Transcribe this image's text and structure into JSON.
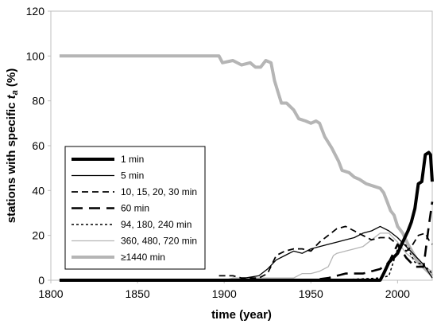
{
  "chart_data": {
    "type": "line",
    "xlabel": "time (year)",
    "ylabel": "stations with specific t_a (%)",
    "ylabel_parts": {
      "main": "stations with specific ",
      "var": "t",
      "sub": "a",
      "unit": " (%)"
    },
    "xlim": [
      1800,
      2020
    ],
    "ylim": [
      0,
      120
    ],
    "x_ticks": [
      "1800",
      "1850",
      "1900",
      "1950",
      "2000"
    ],
    "y_ticks": [
      "0",
      "20",
      "40",
      "60",
      "80",
      "100",
      "120"
    ],
    "grid": "none",
    "legend_position": "left-center",
    "series": [
      {
        "name": "1 min",
        "style": "thick-solid",
        "color": "#000000",
        "points": [
          [
            1805,
            0
          ],
          [
            1990,
            0
          ],
          [
            1992,
            3
          ],
          [
            1995,
            8
          ],
          [
            2000,
            12
          ],
          [
            2003,
            17
          ],
          [
            2006,
            22
          ],
          [
            2008,
            26
          ],
          [
            2010,
            32
          ],
          [
            2012,
            43
          ],
          [
            2014,
            44
          ],
          [
            2016,
            56
          ],
          [
            2018,
            57
          ],
          [
            2019,
            56
          ],
          [
            2020,
            44
          ]
        ]
      },
      {
        "name": "5 min",
        "style": "thin-solid",
        "color": "#000000",
        "points": [
          [
            1805,
            0
          ],
          [
            1910,
            0
          ],
          [
            1912,
            1
          ],
          [
            1920,
            2
          ],
          [
            1925,
            5
          ],
          [
            1930,
            9
          ],
          [
            1935,
            11
          ],
          [
            1940,
            13
          ],
          [
            1945,
            12
          ],
          [
            1950,
            14
          ],
          [
            1955,
            15
          ],
          [
            1960,
            16
          ],
          [
            1965,
            17
          ],
          [
            1970,
            18
          ],
          [
            1975,
            19
          ],
          [
            1980,
            21
          ],
          [
            1985,
            22
          ],
          [
            1990,
            24
          ],
          [
            1995,
            22
          ],
          [
            2000,
            19
          ],
          [
            2005,
            15
          ],
          [
            2010,
            11
          ],
          [
            2015,
            7
          ],
          [
            2020,
            1
          ]
        ]
      },
      {
        "name": "10, 15, 20, 30 min",
        "style": "dashed",
        "color": "#000000",
        "points": [
          [
            1897,
            2
          ],
          [
            1905,
            2
          ],
          [
            1910,
            1
          ],
          [
            1920,
            1
          ],
          [
            1925,
            3
          ],
          [
            1930,
            11
          ],
          [
            1935,
            13
          ],
          [
            1940,
            14
          ],
          [
            1945,
            14
          ],
          [
            1950,
            13
          ],
          [
            1955,
            17
          ],
          [
            1960,
            20
          ],
          [
            1965,
            23
          ],
          [
            1970,
            24
          ],
          [
            1975,
            22
          ],
          [
            1980,
            20
          ],
          [
            1985,
            18
          ],
          [
            1990,
            19
          ],
          [
            1995,
            19
          ],
          [
            2000,
            16
          ],
          [
            2005,
            13
          ],
          [
            2008,
            15
          ],
          [
            2012,
            20
          ],
          [
            2016,
            21
          ],
          [
            2018,
            18
          ],
          [
            2020,
            16
          ]
        ]
      },
      {
        "name": "60 min",
        "style": "long-dashed",
        "color": "#000000",
        "points": [
          [
            1935,
            0
          ],
          [
            1940,
            0
          ],
          [
            1950,
            0
          ],
          [
            1960,
            1
          ],
          [
            1965,
            2
          ],
          [
            1970,
            3
          ],
          [
            1975,
            3
          ],
          [
            1980,
            3
          ],
          [
            1985,
            4
          ],
          [
            1990,
            5
          ],
          [
            1995,
            8
          ],
          [
            2000,
            16
          ],
          [
            2005,
            10
          ],
          [
            2010,
            6
          ],
          [
            2015,
            6
          ],
          [
            2018,
            24
          ],
          [
            2020,
            35
          ]
        ]
      },
      {
        "name": "94, 180, 240 min",
        "style": "dotted",
        "color": "#000000",
        "points": [
          [
            1960,
            0
          ],
          [
            1990,
            1
          ],
          [
            1995,
            2
          ],
          [
            2000,
            14
          ],
          [
            2003,
            18
          ],
          [
            2006,
            14
          ],
          [
            2010,
            8
          ],
          [
            2015,
            7
          ],
          [
            2020,
            3
          ]
        ]
      },
      {
        "name": "360, 480, 720 min",
        "style": "thin-solid",
        "color": "#b5b5b5",
        "points": [
          [
            1805,
            0
          ],
          [
            1900,
            0
          ],
          [
            1905,
            1
          ],
          [
            1940,
            1
          ],
          [
            1945,
            3
          ],
          [
            1950,
            3
          ],
          [
            1955,
            4
          ],
          [
            1960,
            6
          ],
          [
            1963,
            11
          ],
          [
            1965,
            12
          ],
          [
            1970,
            13
          ],
          [
            1975,
            14
          ],
          [
            1980,
            15
          ],
          [
            1985,
            18
          ],
          [
            1990,
            21
          ],
          [
            1995,
            21
          ],
          [
            2000,
            17
          ],
          [
            2005,
            12
          ],
          [
            2010,
            9
          ],
          [
            2015,
            6
          ],
          [
            2020,
            4
          ]
        ]
      },
      {
        "name": "≥1440 min",
        "style": "thick-solid",
        "color": "#b5b5b5",
        "points": [
          [
            1805,
            100
          ],
          [
            1897,
            100
          ],
          [
            1899,
            97
          ],
          [
            1905,
            98
          ],
          [
            1910,
            96
          ],
          [
            1915,
            97
          ],
          [
            1918,
            95
          ],
          [
            1921,
            95
          ],
          [
            1924,
            98
          ],
          [
            1927,
            97
          ],
          [
            1929,
            89
          ],
          [
            1931,
            84
          ],
          [
            1933,
            79
          ],
          [
            1936,
            79
          ],
          [
            1940,
            76
          ],
          [
            1943,
            72
          ],
          [
            1947,
            71
          ],
          [
            1950,
            70
          ],
          [
            1953,
            71
          ],
          [
            1955,
            70
          ],
          [
            1958,
            64
          ],
          [
            1962,
            59
          ],
          [
            1966,
            53
          ],
          [
            1968,
            49
          ],
          [
            1972,
            48
          ],
          [
            1975,
            46
          ],
          [
            1978,
            45
          ],
          [
            1982,
            43
          ],
          [
            1986,
            42
          ],
          [
            1990,
            41
          ],
          [
            1992,
            39
          ],
          [
            1994,
            35
          ],
          [
            1996,
            31
          ],
          [
            1998,
            29
          ],
          [
            2000,
            24
          ],
          [
            2003,
            21
          ],
          [
            2006,
            16
          ],
          [
            2009,
            12
          ],
          [
            2012,
            8
          ],
          [
            2016,
            5
          ],
          [
            2020,
            2
          ]
        ]
      }
    ]
  }
}
